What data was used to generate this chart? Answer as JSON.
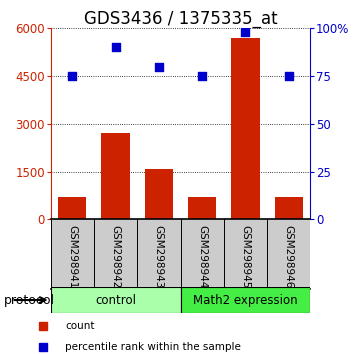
{
  "title": "GDS3436 / 1375335_at",
  "samples": [
    "GSM298941",
    "GSM298942",
    "GSM298943",
    "GSM298944",
    "GSM298945",
    "GSM298946"
  ],
  "counts": [
    700,
    2700,
    1600,
    700,
    5700,
    700
  ],
  "percentiles": [
    75,
    90,
    80,
    75,
    98,
    75
  ],
  "bar_color": "#cc2200",
  "dot_color": "#0000cc",
  "left_ylim": [
    0,
    6000
  ],
  "left_yticks": [
    0,
    1500,
    3000,
    4500,
    6000
  ],
  "right_ylim": [
    0,
    100
  ],
  "right_yticks": [
    0,
    25,
    50,
    75,
    100
  ],
  "right_yticklabels": [
    "0",
    "25",
    "50",
    "75",
    "100%"
  ],
  "left_yticklabels": [
    "0",
    "1500",
    "3000",
    "4500",
    "6000"
  ],
  "groups": [
    {
      "label": "control",
      "indices": [
        0,
        1,
        2
      ],
      "color": "#aaffaa"
    },
    {
      "label": "Math2 expression",
      "indices": [
        3,
        4,
        5
      ],
      "color": "#44ee44"
    }
  ],
  "protocol_label": "protocol",
  "legend_items": [
    {
      "color": "#cc2200",
      "label": "count"
    },
    {
      "color": "#0000cc",
      "label": "percentile rank within the sample"
    }
  ],
  "bg_color": "#ffffff",
  "sample_bg": "#cccccc",
  "title_fontsize": 12,
  "tick_label_fontsize": 8.5,
  "bar_width": 0.65
}
